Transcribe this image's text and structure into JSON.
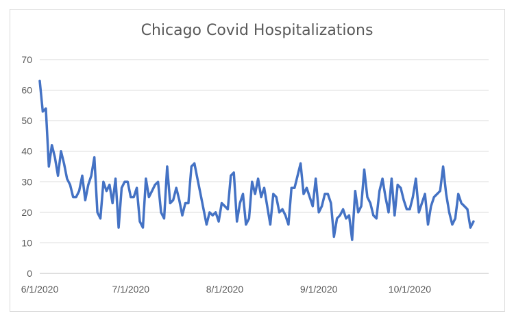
{
  "chart_data": {
    "type": "line",
    "title": "Chicago Covid Hospitalizations",
    "xlabel": "",
    "ylabel": "",
    "ylim": [
      0,
      70
    ],
    "yticks": [
      0,
      10,
      20,
      30,
      40,
      50,
      60,
      70
    ],
    "xlim": [
      "2020-06-01",
      "2020-10-27"
    ],
    "xticks": [
      "6/1/2020",
      "7/1/2020",
      "8/1/2020",
      "9/1/2020",
      "10/1/2020"
    ],
    "xtick_dates": [
      "2020-06-01",
      "2020-07-01",
      "2020-08-01",
      "2020-09-01",
      "2020-10-01"
    ],
    "grid": true,
    "line_color": "#4472c4",
    "series": [
      {
        "start_date": "2020-06-01",
        "values": [
          63,
          53,
          54,
          35,
          42,
          38,
          32,
          40,
          36,
          31,
          29,
          25,
          25,
          27,
          32,
          24,
          29,
          32,
          38,
          20,
          18,
          30,
          27,
          29,
          23,
          31,
          15,
          28,
          30,
          30,
          25,
          25,
          28,
          17,
          15,
          31,
          25,
          27,
          29,
          30,
          20,
          18,
          35,
          23,
          24,
          28,
          24,
          19,
          23,
          23,
          35,
          36,
          31,
          26,
          21,
          16,
          20,
          19,
          20,
          17,
          23,
          22,
          21,
          32,
          33,
          17,
          23,
          26,
          16,
          18,
          30,
          26,
          31,
          25,
          28,
          22,
          16,
          26,
          25,
          20,
          21,
          19,
          16,
          28,
          28,
          32,
          36,
          26,
          28,
          25,
          22,
          31,
          20,
          22,
          26,
          26,
          23,
          12,
          18,
          19,
          21,
          18,
          19,
          11,
          27,
          20,
          22,
          34,
          25,
          23,
          19,
          18,
          27,
          31,
          25,
          20,
          31,
          19,
          29,
          28,
          24,
          21,
          21,
          25,
          31,
          20,
          23,
          26,
          16,
          22,
          25,
          26,
          27,
          35,
          26,
          20,
          16,
          18,
          26,
          23,
          22,
          21,
          15,
          17
        ]
      }
    ]
  }
}
